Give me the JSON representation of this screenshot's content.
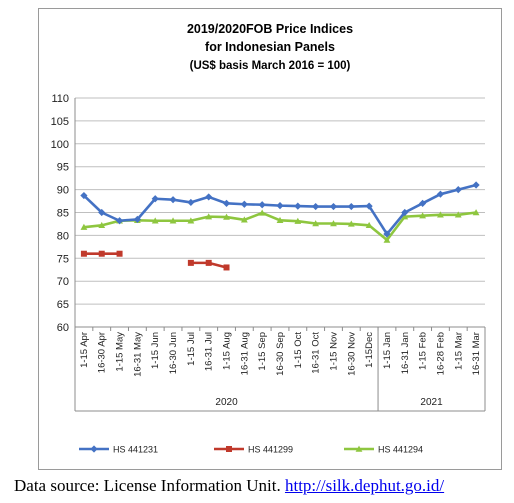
{
  "chart_data": {
    "type": "line",
    "title_lines": [
      "2019/2020FOB Price Indices",
      "for Indonesian Panels",
      "(US$ basis March 2016 = 100)"
    ],
    "xlabel": "",
    "ylabel": "",
    "ylim": [
      60,
      110
    ],
    "yticks": [
      "110",
      "105",
      "100",
      "95",
      "90",
      "85",
      "80",
      "75",
      "70",
      "65",
      "60"
    ],
    "categories": [
      "1-15 Apr",
      "16-30 Apr",
      "1-15 May",
      "16-31 May",
      "1-15 Jun",
      "16-30 Jun",
      "1-15 Jul",
      "16-31 Jul",
      "1-15 Aug",
      "16-31 Aug",
      "1-15 Sep",
      "16-30 Sep",
      "1-15 Oct",
      "16-31 Oct",
      "1-15 Nov",
      "16-30 Nov",
      "1-15Dec",
      "1-15 Jan",
      "16-31 Jan",
      "1-15 Feb",
      "16-28 Feb",
      "1-15 Mar",
      "16-31 Mar"
    ],
    "groups": [
      {
        "label": "2020",
        "start": 0,
        "end": 16
      },
      {
        "label": "2021",
        "start": 17,
        "end": 22
      }
    ],
    "grid": "horizontal",
    "legend_position": "bottom",
    "series": [
      {
        "name": "HS 441231",
        "color": "#4472c4",
        "marker": "diamond",
        "values": [
          88.7,
          85,
          83.2,
          83.5,
          88,
          87.8,
          87.2,
          88.4,
          87,
          86.8,
          86.7,
          86.5,
          86.4,
          86.3,
          86.3,
          86.3,
          86.4,
          80.3,
          85,
          87,
          89,
          90,
          91
        ]
      },
      {
        "name": "HS 441299",
        "color": "#c0392b",
        "marker": "square",
        "values": [
          76,
          76,
          76,
          null,
          null,
          null,
          74,
          74,
          73,
          null,
          null,
          null,
          null,
          null,
          null,
          null,
          null,
          null,
          null,
          null,
          null,
          null,
          null
        ]
      },
      {
        "name": "HS 441294",
        "color": "#8ec63f",
        "marker": "triangle",
        "values": [
          81.8,
          82.2,
          83.2,
          83.3,
          83.2,
          83.2,
          83.2,
          84.1,
          84,
          83.4,
          84.9,
          83.3,
          83.1,
          82.6,
          82.6,
          82.5,
          82.2,
          79,
          84.1,
          84.3,
          84.5,
          84.5,
          85
        ]
      }
    ]
  },
  "source": {
    "text": "Data source: License Information Unit. ",
    "link_text": "http://silk.dephut.go.id/"
  }
}
